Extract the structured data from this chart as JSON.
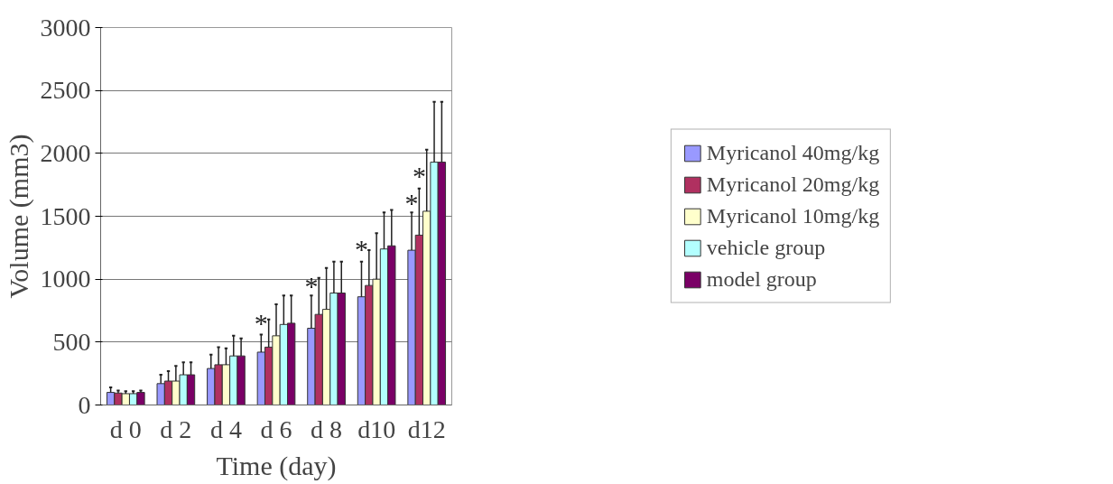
{
  "chart_data": {
    "type": "bar",
    "xlabel": "Time (day)",
    "ylabel": "Volume (mm3)",
    "categories": [
      "d 0",
      "d 2",
      "d 4",
      "d 6",
      "d 8",
      "d10",
      "d12"
    ],
    "series": [
      {
        "name": "Myricanol 40mg/kg",
        "color": "#9999ff",
        "values": [
          100,
          170,
          290,
          420,
          610,
          860,
          1230
        ],
        "errors": [
          [
            100,
            140
          ],
          [
            170,
            240
          ],
          [
            290,
            400
          ],
          [
            420,
            560
          ],
          [
            610,
            870
          ],
          [
            860,
            1140
          ],
          [
            1230,
            1530
          ]
        ]
      },
      {
        "name": "Myricanol 20mg/kg",
        "color": "#b03060",
        "values": [
          95,
          190,
          320,
          460,
          720,
          950,
          1350
        ],
        "errors": [
          [
            95,
            115
          ],
          [
            190,
            270
          ],
          [
            320,
            460
          ],
          [
            460,
            680
          ],
          [
            720,
            1010
          ],
          [
            950,
            1230
          ],
          [
            1350,
            1720
          ]
        ]
      },
      {
        "name": "Myricanol 10mg/kg",
        "color": "#ffffcc",
        "values": [
          90,
          190,
          320,
          550,
          760,
          1000,
          1540
        ],
        "errors": [
          [
            90,
            110
          ],
          [
            190,
            310
          ],
          [
            320,
            450
          ],
          [
            550,
            800
          ],
          [
            760,
            1090
          ],
          [
            1000,
            1365
          ],
          [
            1540,
            2030
          ]
        ]
      },
      {
        "name": "vehicle group",
        "color": "#b3ffff",
        "values": [
          90,
          240,
          390,
          640,
          890,
          1240,
          1930
        ],
        "errors": [
          [
            90,
            110
          ],
          [
            240,
            340
          ],
          [
            390,
            550
          ],
          [
            640,
            870
          ],
          [
            890,
            1140
          ],
          [
            1240,
            1530
          ],
          [
            1930,
            2410
          ]
        ]
      },
      {
        "name": "model group",
        "color": "#7a0066",
        "values": [
          100,
          240,
          390,
          650,
          890,
          1265,
          1930
        ],
        "errors": [
          [
            100,
            115
          ],
          [
            240,
            340
          ],
          [
            390,
            530
          ],
          [
            650,
            870
          ],
          [
            890,
            1140
          ],
          [
            1265,
            1550
          ],
          [
            1930,
            2410
          ]
        ]
      }
    ],
    "ylim": [
      0,
      3000
    ],
    "yticks": [
      0,
      500,
      1000,
      1500,
      2000,
      2500,
      3000
    ],
    "grid": "y",
    "legend": "right",
    "annotations": [
      {
        "text": "*",
        "x": "d 6",
        "y": 650
      },
      {
        "text": "*",
        "x": "d 8",
        "y": 950
      },
      {
        "text": "*",
        "x": "d10",
        "y": 1240
      },
      {
        "text": "*",
        "x": "d12",
        "y": 1610
      },
      {
        "text": "*",
        "x": "d12",
        "y": 1820
      }
    ]
  }
}
